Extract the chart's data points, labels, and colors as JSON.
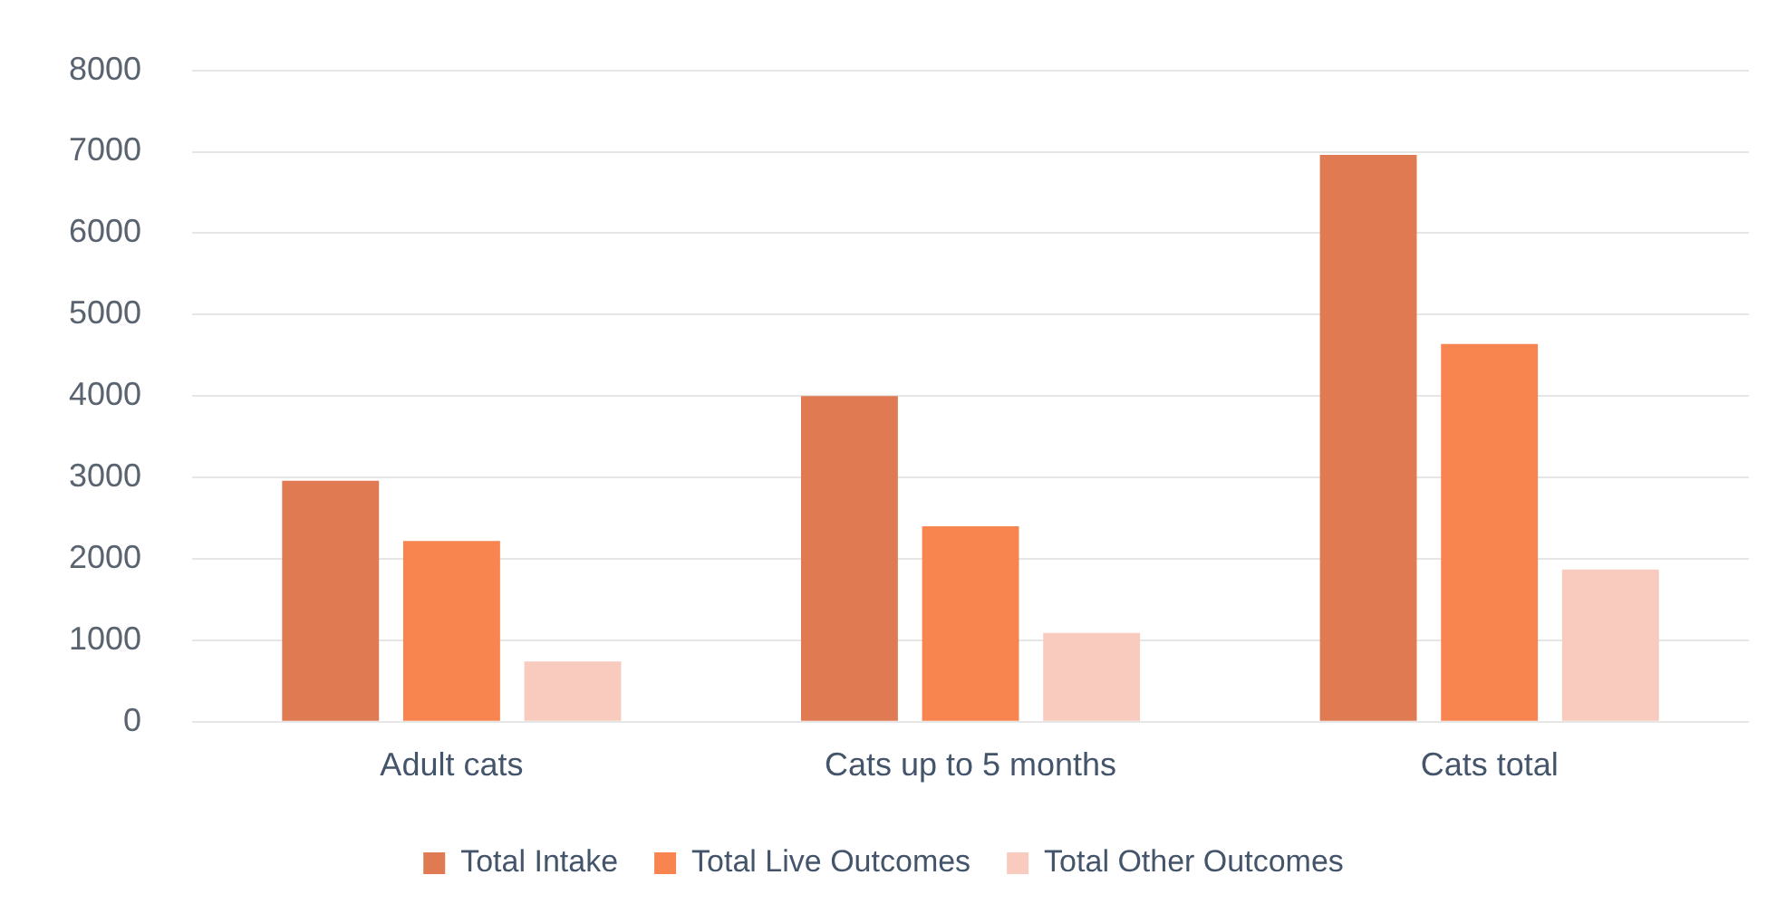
{
  "chart_data": {
    "type": "bar",
    "categories": [
      "Adult cats",
      "Cats up to 5 months",
      "Cats total"
    ],
    "series": [
      {
        "name": "Total Intake",
        "color": "#e07a52",
        "values": [
          2960,
          4000,
          6960
        ]
      },
      {
        "name": "Total Live Outcomes",
        "color": "#f8844f",
        "values": [
          2220,
          2400,
          4640
        ]
      },
      {
        "name": "Total Other Outcomes",
        "color": "#f9cbbf",
        "values": [
          740,
          1090,
          1870
        ]
      }
    ],
    "ylim": [
      0,
      8000
    ],
    "yticks": [
      0,
      1000,
      2000,
      3000,
      4000,
      5000,
      6000,
      7000,
      8000
    ],
    "grid": "y",
    "legend": "bottom"
  }
}
